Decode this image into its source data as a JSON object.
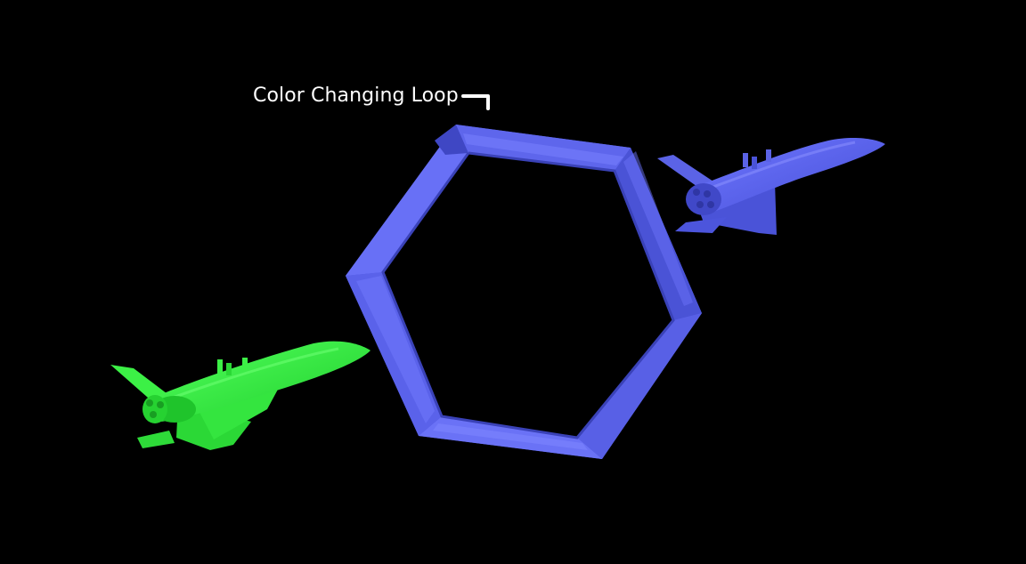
{
  "scene": {
    "background_color": "#000000",
    "label": "Color Changing Loop",
    "loop_color": "#5a64e6",
    "shuttle_left_color": "#2fe83c",
    "shuttle_right_color": "#5860e2",
    "icons": [
      "bracket-icon",
      "hexagon-loop",
      "space-shuttle"
    ]
  }
}
